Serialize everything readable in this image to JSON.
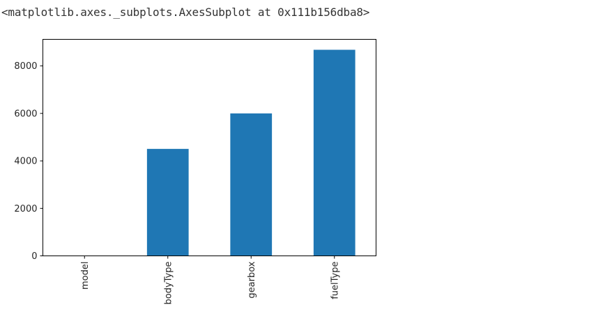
{
  "output": {
    "repr_text": "<matplotlib.axes._subplots.AxesSubplot at 0x111b156dba8>"
  },
  "chart_data": {
    "type": "bar",
    "categories": [
      "model",
      "bodyType",
      "gearbox",
      "fuelType"
    ],
    "values": [
      1,
      4506,
      6000,
      8680
    ],
    "bar_color": "#1f77b4",
    "ylim": [
      0,
      9120
    ],
    "yticks": [
      0,
      2000,
      4000,
      6000,
      8000
    ],
    "ytick_labels": [
      "0",
      "2000",
      "4000",
      "6000",
      "8000"
    ],
    "xtick_rotation": "vertical",
    "grid": false,
    "title": "",
    "xlabel": "",
    "ylabel": ""
  }
}
